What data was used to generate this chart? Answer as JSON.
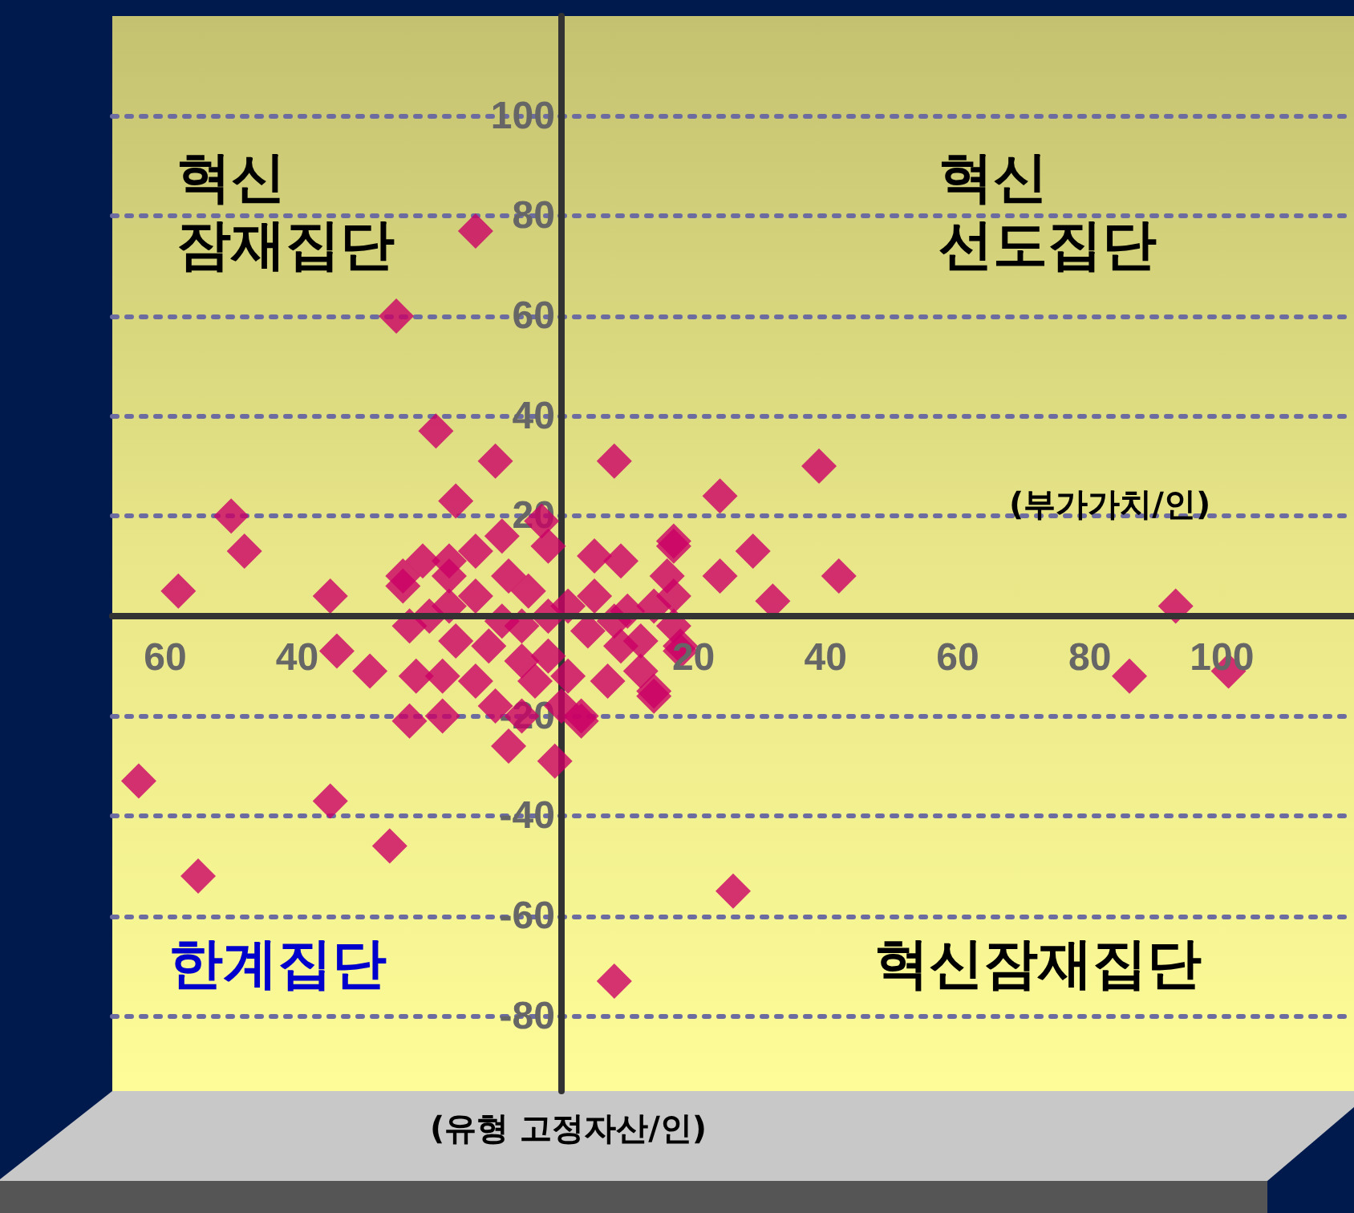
{
  "chart_data": {
    "type": "scatter",
    "xlabel": "(부가가치/인)",
    "annotations": [
      "혁신\n잠재집단",
      "혁신\n선도집단",
      "한계집단",
      "혁신잠재집단",
      "(유형 고정자산/인)"
    ],
    "series": [
      {
        "color": "#cc0066",
        "x": [
          -13,
          -25,
          -19,
          -10,
          8,
          -16,
          -50,
          -48,
          -58,
          -35,
          -34,
          -29,
          -64,
          -35,
          -55,
          -26,
          -23,
          -18,
          -8,
          -1,
          3,
          24,
          39,
          42,
          29,
          24,
          32,
          17,
          93,
          86,
          101,
          26,
          8,
          14,
          18,
          -21,
          -24,
          -3,
          -2,
          -24,
          -13,
          -9,
          5,
          9,
          17,
          16,
          17,
          -23,
          -20,
          -22,
          -18,
          -13,
          -10,
          -6,
          0,
          3,
          7,
          12,
          14,
          18,
          17,
          -13,
          -8,
          -5,
          -6,
          -2,
          1,
          5,
          10,
          14,
          4,
          9,
          -2,
          -6,
          -11,
          -16,
          -17,
          1,
          -4,
          -17,
          -17,
          -9,
          8,
          12
        ],
        "values": [
          77,
          60,
          37,
          31,
          31,
          23,
          20,
          13,
          5,
          4,
          -7,
          -11,
          -33,
          -37,
          -52,
          -46,
          -21,
          -20,
          -26,
          -29,
          -20,
          24,
          30,
          8,
          13,
          8,
          3,
          14,
          2,
          -12,
          -11,
          -55,
          -73,
          -16,
          -6,
          11,
          6,
          19,
          14,
          8,
          13,
          16,
          12,
          11,
          15,
          8,
          4,
          -2,
          0,
          -12,
          -12,
          -13,
          -18,
          -20,
          -18,
          -21,
          -13,
          -11,
          -15,
          -7,
          -2,
          4,
          8,
          5,
          -2,
          0,
          2,
          4,
          1,
          2,
          -3,
          -6,
          -8,
          -9,
          -6,
          -5,
          2,
          -12,
          -13,
          8,
          11,
          -1,
          -1,
          -5
        ]
      }
    ],
    "xlim": [
      -68,
      120
    ],
    "ylim": [
      -95,
      120
    ],
    "xticks": [
      {
        "value": -60,
        "label": "60"
      },
      {
        "value": -40,
        "label": "40"
      },
      {
        "value": 20,
        "label": "20"
      },
      40,
      60,
      80,
      100
    ],
    "yticks": [
      -80,
      -60,
      -40,
      -20,
      20,
      40,
      60,
      80,
      100
    ],
    "grid": "y",
    "marker": "diamond"
  }
}
